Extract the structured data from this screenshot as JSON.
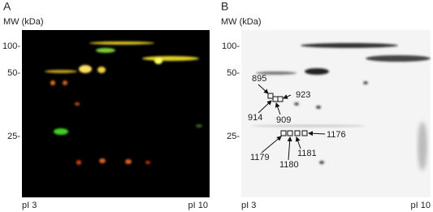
{
  "panels": [
    {
      "label": "A",
      "y_axis_title": "MW (kDa)",
      "mw_markers": [
        "100-",
        "50-",
        "25-"
      ],
      "x_left": "pI 3",
      "x_right": "pI 10"
    },
    {
      "label": "B",
      "y_axis_title": "MW (kDa)",
      "mw_markers": [
        "100-",
        "50-",
        "25-"
      ],
      "x_left": "pI 3",
      "x_right": "pI 10",
      "spot_labels": [
        "895",
        "923",
        "914",
        "909",
        "1176",
        "1179",
        "1180",
        "1181"
      ]
    }
  ]
}
